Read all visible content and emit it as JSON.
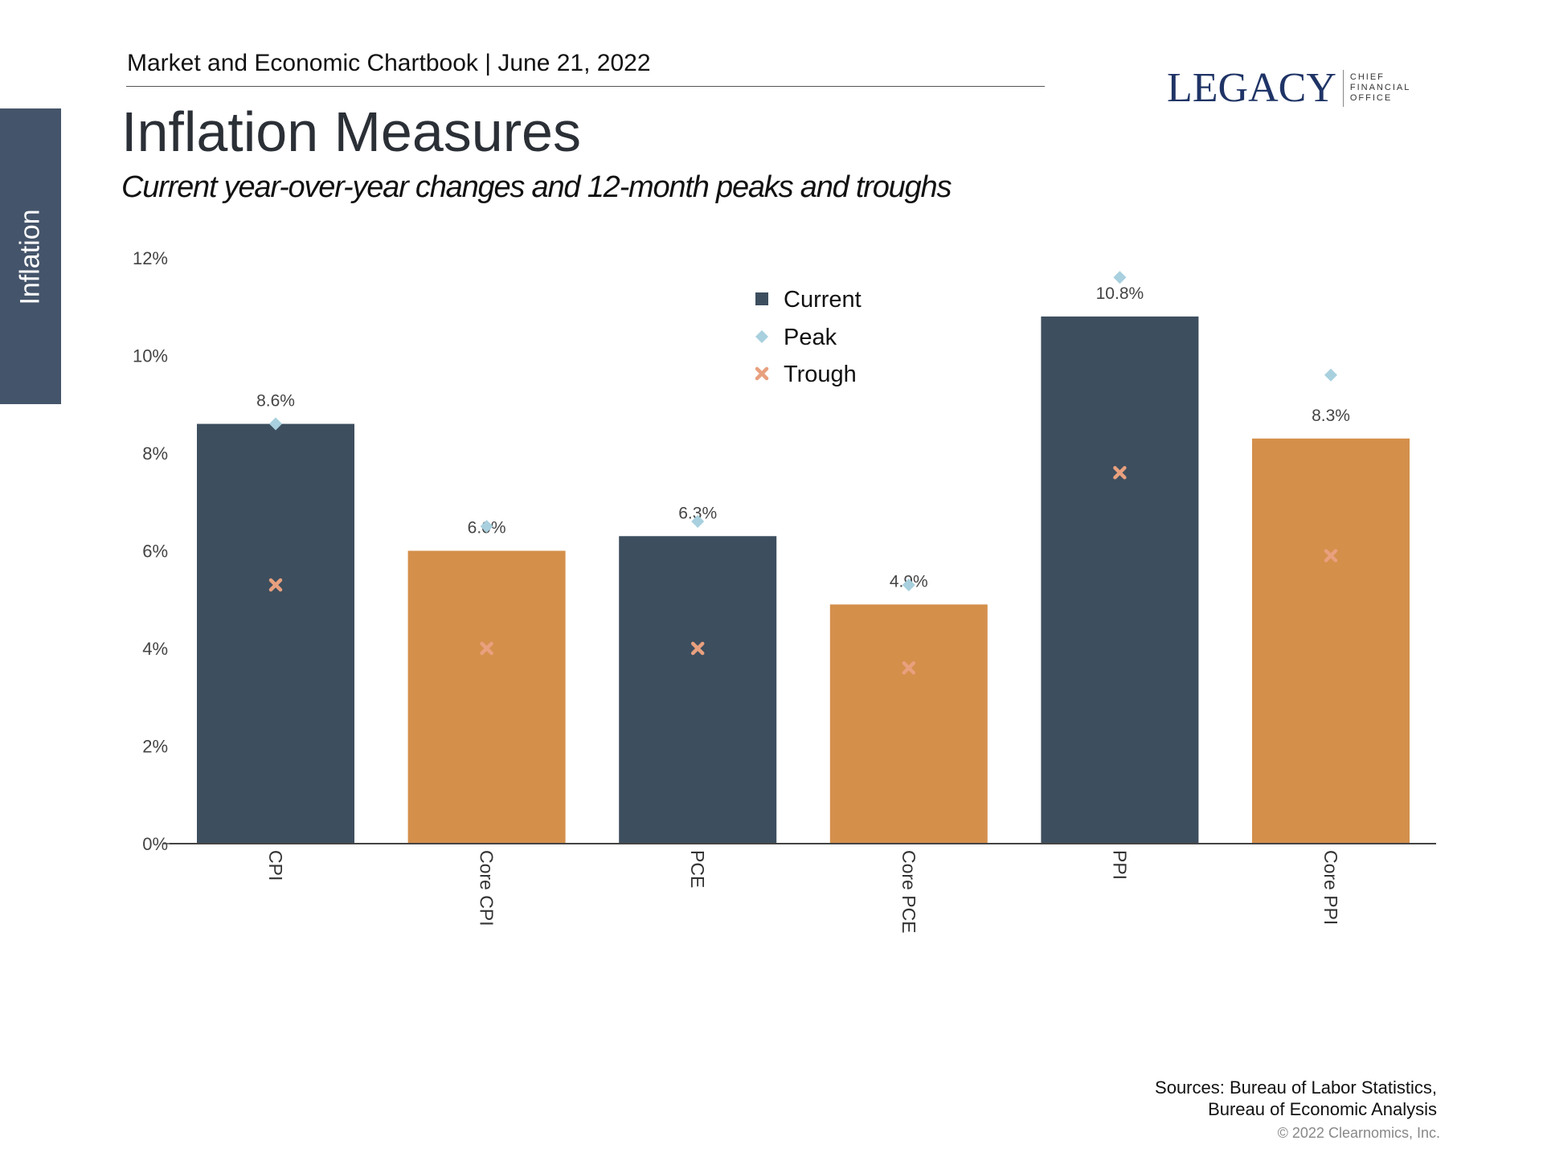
{
  "header": {
    "text": "Market and Economic Chartbook | June 21, 2022"
  },
  "side_tab": {
    "label": "Inflation",
    "color": "#44546a"
  },
  "title": "Inflation Measures",
  "subtitle": "Current year-over-year changes and 12-month peaks and troughs",
  "logo": {
    "word": "LEGACY",
    "sub": [
      "CHIEF",
      "FINANCIAL",
      "OFFICE"
    ]
  },
  "sources": [
    "Sources: Bureau of Labor Statistics,",
    "Bureau of Economic Analysis"
  ],
  "copyright": "© 2022 Clearnomics, Inc.",
  "chart_data": {
    "type": "bar",
    "categories": [
      "CPI",
      "Core CPI",
      "PCE",
      "Core PCE",
      "PPI",
      "Core PPI"
    ],
    "series": [
      {
        "name": "Current",
        "values": [
          8.6,
          6.0,
          6.3,
          4.9,
          10.8,
          8.3
        ],
        "colors": [
          "#3d4e5e",
          "#d48f4b",
          "#3d4e5e",
          "#d48f4b",
          "#3d4e5e",
          "#d48f4b"
        ]
      },
      {
        "name": "Peak",
        "values": [
          8.6,
          6.5,
          6.6,
          5.3,
          11.6,
          9.6
        ],
        "color": "#a8d0de",
        "marker": "diamond"
      },
      {
        "name": "Trough",
        "values": [
          5.3,
          4.0,
          4.0,
          3.6,
          7.6,
          5.9
        ],
        "color": "#e8a07e",
        "marker": "x"
      }
    ],
    "data_labels": [
      "8.6%",
      "6.0%",
      "6.3%",
      "4.9%",
      "10.8%",
      "8.3%"
    ],
    "y_ticks": [
      "0%",
      "2%",
      "4%",
      "6%",
      "8%",
      "10%",
      "12%"
    ],
    "ylim": [
      0,
      12
    ],
    "grid": false,
    "legend": {
      "placement": "top-center",
      "entries": [
        "Current",
        "Peak",
        "Trough"
      ]
    }
  }
}
